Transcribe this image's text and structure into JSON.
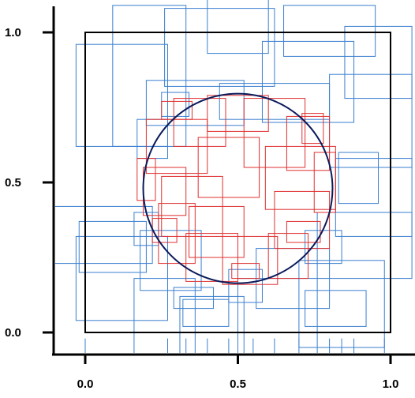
{
  "chart_data": {
    "type": "scatter",
    "title": "",
    "xlabel": "",
    "ylabel": "",
    "xlim": [
      -0.1,
      1.07
    ],
    "ylim": [
      -0.1,
      1.07
    ],
    "x_ticks": [
      0.0,
      0.5,
      1.0
    ],
    "y_ticks": [
      0.0,
      0.5,
      1.0
    ],
    "x_tick_labels": [
      "0.0",
      "0.5",
      "1.0"
    ],
    "y_tick_labels": [
      "0.0",
      "0.5",
      "1.0"
    ],
    "grid": false,
    "domain_box": {
      "x0": 0.0,
      "y0": 0.0,
      "x1": 1.0,
      "y1": 1.0
    },
    "circle": {
      "cx": 0.5,
      "cy": 0.48,
      "r": 0.31
    },
    "colors": {
      "outer_rectangles": "#3a7fd0",
      "inner_rectangles": "#e03030",
      "circle": "#0a1a5a",
      "box": "#000000"
    },
    "rectangles_outer": [
      {
        "x0": -0.03,
        "y0": 0.62,
        "x1": 0.27,
        "y1": 0.96
      },
      {
        "x0": 0.09,
        "y0": 0.62,
        "x1": 0.33,
        "y1": 1.09
      },
      {
        "x0": 0.26,
        "y0": 0.82,
        "x1": 0.62,
        "y1": 1.08
      },
      {
        "x0": 0.4,
        "y0": 0.93,
        "x1": 0.6,
        "y1": 1.12
      },
      {
        "x0": 0.58,
        "y0": 0.7,
        "x1": 0.88,
        "y1": 0.97
      },
      {
        "x0": 0.65,
        "y0": 0.92,
        "x1": 0.95,
        "y1": 1.09
      },
      {
        "x0": 0.85,
        "y0": 0.78,
        "x1": 1.07,
        "y1": 1.02
      },
      {
        "x0": 0.8,
        "y0": 0.55,
        "x1": 1.07,
        "y1": 0.86
      },
      {
        "x0": 0.82,
        "y0": 0.32,
        "x1": 1.07,
        "y1": 0.58
      },
      {
        "x0": 0.76,
        "y0": 0.18,
        "x1": 1.07,
        "y1": 0.4
      },
      {
        "x0": 0.7,
        "y0": -0.05,
        "x1": 0.98,
        "y1": 0.24
      },
      {
        "x0": 0.72,
        "y0": 0.02,
        "x1": 0.92,
        "y1": 0.14
      },
      {
        "x0": 0.5,
        "y0": -0.07,
        "x1": 0.76,
        "y1": 0.18
      },
      {
        "x0": 0.31,
        "y0": -0.09,
        "x1": 0.52,
        "y1": 0.12
      },
      {
        "x0": 0.32,
        "y0": 0.02,
        "x1": 0.47,
        "y1": 0.11
      },
      {
        "x0": 0.16,
        "y0": -0.08,
        "x1": 0.36,
        "y1": 0.18
      },
      {
        "x0": -0.03,
        "y0": 0.04,
        "x1": 0.27,
        "y1": 0.32
      },
      {
        "x0": -0.1,
        "y0": 0.23,
        "x1": 0.22,
        "y1": 0.42
      },
      {
        "x0": -0.02,
        "y0": 0.2,
        "x1": 0.2,
        "y1": 0.37
      },
      {
        "x0": 0.18,
        "y0": 0.14,
        "x1": 0.38,
        "y1": 0.34
      },
      {
        "x0": 0.56,
        "y0": 0.08,
        "x1": 0.8,
        "y1": 0.28
      },
      {
        "x0": 0.2,
        "y0": 0.69,
        "x1": 0.52,
        "y1": 0.84
      },
      {
        "x0": 0.44,
        "y0": 0.71,
        "x1": 0.8,
        "y1": 0.83
      },
      {
        "x0": 0.17,
        "y0": 0.58,
        "x1": 0.27,
        "y1": 0.71
      },
      {
        "x0": 0.83,
        "y0": 0.43,
        "x1": 0.96,
        "y1": 0.6
      },
      {
        "x0": 0.16,
        "y0": 0.29,
        "x1": 0.24,
        "y1": 0.4
      },
      {
        "x0": 0.47,
        "y0": 0.1,
        "x1": 0.58,
        "y1": 0.21
      },
      {
        "x0": 0.29,
        "y0": 0.08,
        "x1": 0.42,
        "y1": 0.15
      },
      {
        "x0": 0.72,
        "y0": 0.23,
        "x1": 0.84,
        "y1": 0.34
      },
      {
        "x0": 0.25,
        "y0": 0.72,
        "x1": 0.34,
        "y1": 0.8
      }
    ],
    "rectangles_inner": [
      {
        "x0": 0.2,
        "y0": 0.53,
        "x1": 0.4,
        "y1": 0.71
      },
      {
        "x0": 0.29,
        "y0": 0.62,
        "x1": 0.46,
        "y1": 0.78
      },
      {
        "x0": 0.4,
        "y0": 0.67,
        "x1": 0.6,
        "y1": 0.79
      },
      {
        "x0": 0.52,
        "y0": 0.55,
        "x1": 0.72,
        "y1": 0.78
      },
      {
        "x0": 0.66,
        "y0": 0.54,
        "x1": 0.8,
        "y1": 0.72
      },
      {
        "x0": 0.59,
        "y0": 0.41,
        "x1": 0.82,
        "y1": 0.62
      },
      {
        "x0": 0.62,
        "y0": 0.28,
        "x1": 0.8,
        "y1": 0.47
      },
      {
        "x0": 0.6,
        "y0": 0.18,
        "x1": 0.73,
        "y1": 0.33
      },
      {
        "x0": 0.45,
        "y0": 0.16,
        "x1": 0.63,
        "y1": 0.32
      },
      {
        "x0": 0.33,
        "y0": 0.17,
        "x1": 0.5,
        "y1": 0.33
      },
      {
        "x0": 0.24,
        "y0": 0.23,
        "x1": 0.36,
        "y1": 0.43
      },
      {
        "x0": 0.19,
        "y0": 0.39,
        "x1": 0.33,
        "y1": 0.55
      },
      {
        "x0": 0.25,
        "y0": 0.32,
        "x1": 0.45,
        "y1": 0.52
      },
      {
        "x0": 0.37,
        "y0": 0.45,
        "x1": 0.57,
        "y1": 0.65
      },
      {
        "x0": 0.34,
        "y0": 0.25,
        "x1": 0.52,
        "y1": 0.42
      },
      {
        "x0": 0.17,
        "y0": 0.44,
        "x1": 0.23,
        "y1": 0.58
      },
      {
        "x0": 0.75,
        "y0": 0.4,
        "x1": 0.82,
        "y1": 0.6
      },
      {
        "x0": 0.25,
        "y0": 0.71,
        "x1": 0.35,
        "y1": 0.77
      },
      {
        "x0": 0.48,
        "y0": 0.18,
        "x1": 0.57,
        "y1": 0.23
      },
      {
        "x0": 0.66,
        "y0": 0.3,
        "x1": 0.77,
        "y1": 0.37
      },
      {
        "x0": 0.22,
        "y0": 0.3,
        "x1": 0.3,
        "y1": 0.38
      },
      {
        "x0": 0.71,
        "y0": 0.63,
        "x1": 0.78,
        "y1": 0.73
      }
    ]
  }
}
